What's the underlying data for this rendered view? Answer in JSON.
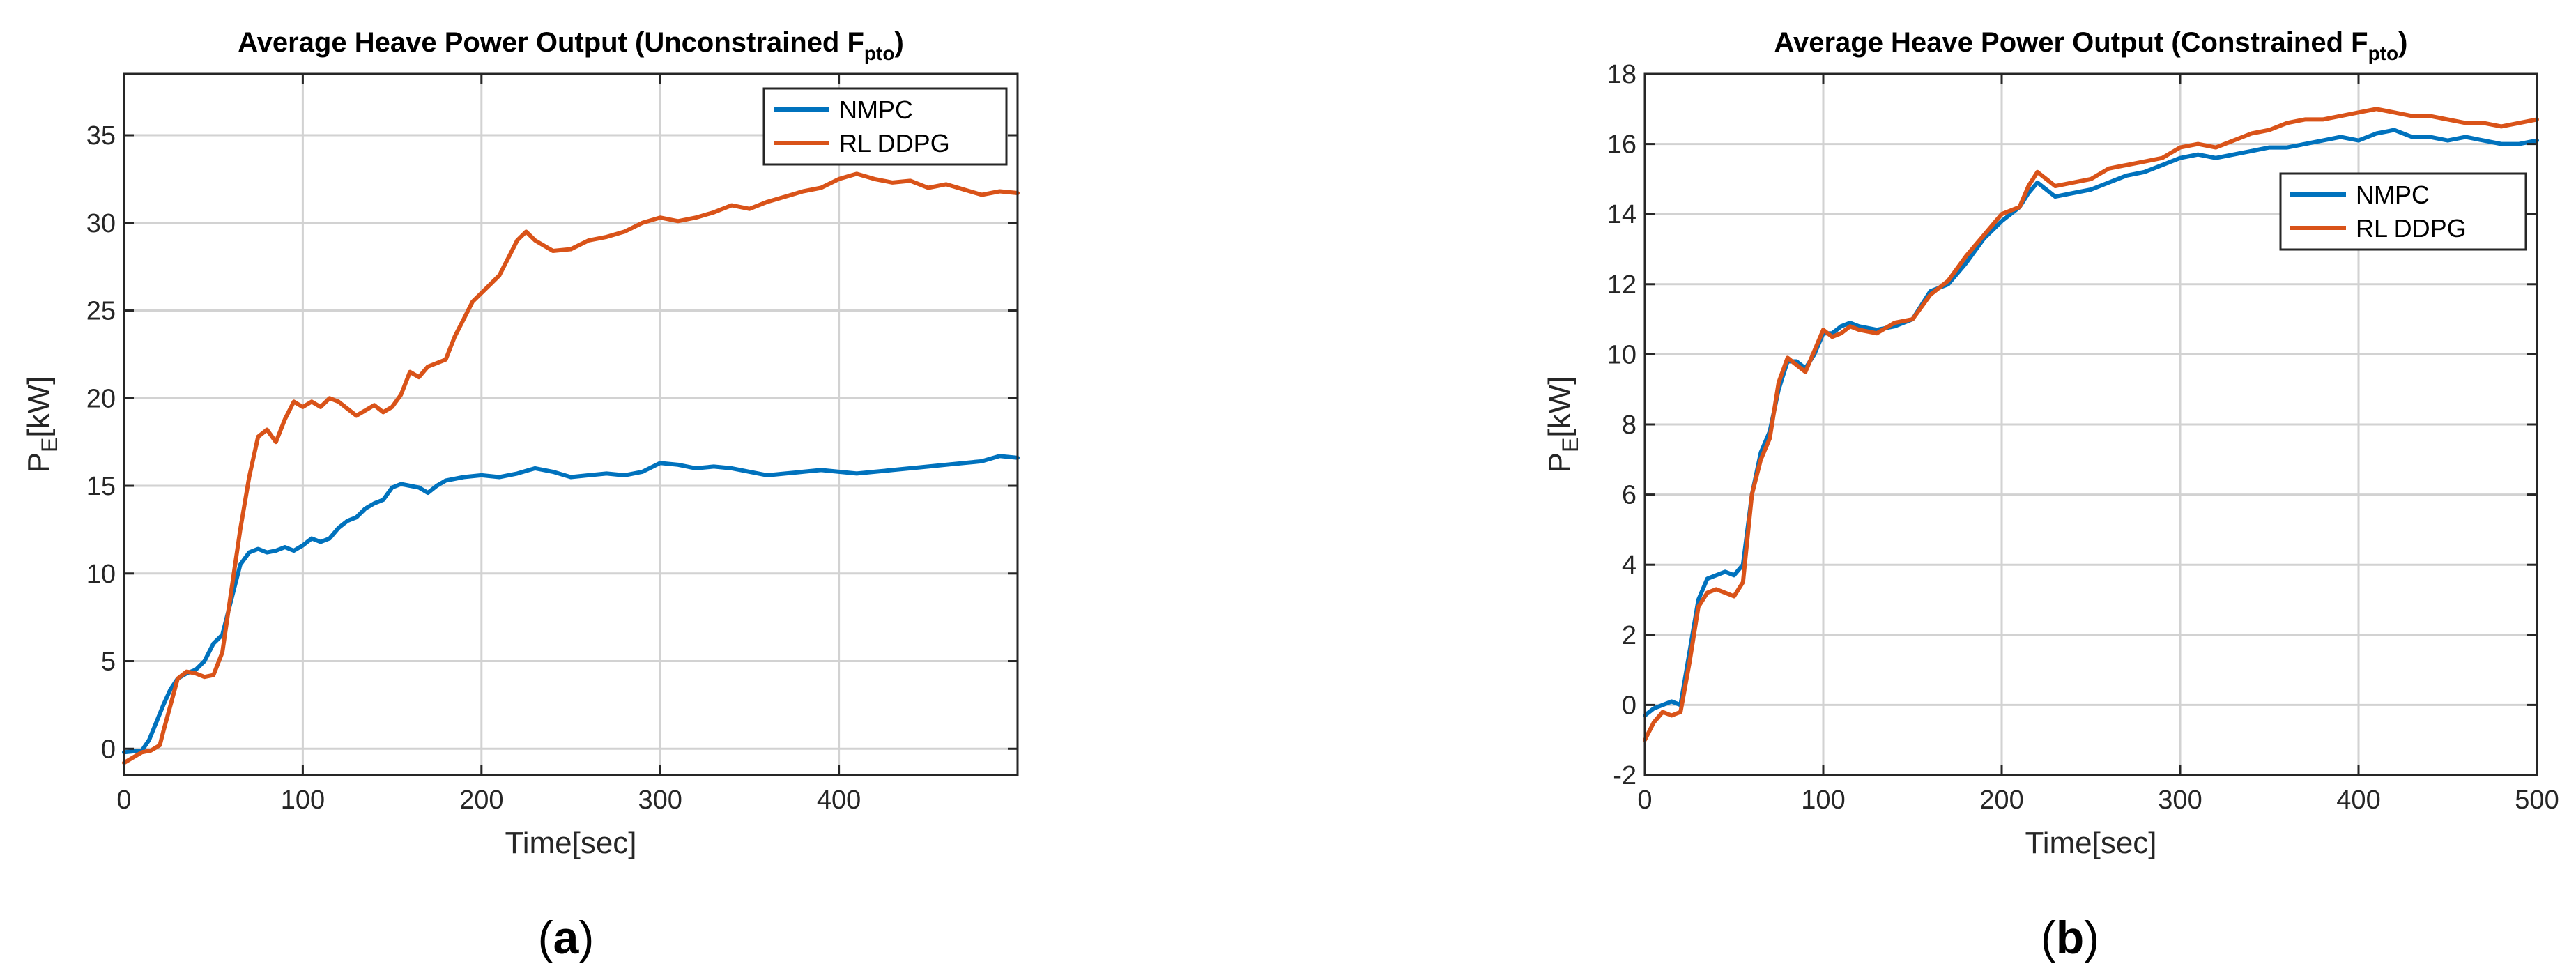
{
  "chart_data": [
    {
      "type": "line",
      "title": "Average Heave Power Output (Unconstrained F",
      "title_subscript": "pto",
      "title_suffix": ")",
      "xlabel": "Time[sec]",
      "ylabel": "P",
      "ylabel_subscript": "E",
      "ylabel_suffix": "[kW]",
      "xlim": [
        0,
        500
      ],
      "ylim": [
        -1.5,
        38.5
      ],
      "xticks": [
        0,
        100,
        200,
        300,
        400
      ],
      "xtick_labels": [
        "0",
        "100",
        "200",
        "300",
        "400"
      ],
      "yticks": [
        0,
        5,
        10,
        15,
        20,
        25,
        30,
        35
      ],
      "ytick_labels": [
        "0",
        "5",
        "10",
        "15",
        "20",
        "25",
        "30",
        "35"
      ],
      "grid": true,
      "legend_position": "top-right",
      "caption_letter": "a",
      "series": [
        {
          "name": "NMPC",
          "color": "#0072BD",
          "x": [
            0,
            10,
            14,
            18,
            22,
            26,
            30,
            35,
            40,
            45,
            50,
            55,
            60,
            65,
            70,
            75,
            80,
            85,
            90,
            95,
            100,
            105,
            110,
            115,
            120,
            125,
            130,
            135,
            140,
            145,
            150,
            155,
            160,
            165,
            170,
            175,
            180,
            190,
            200,
            210,
            220,
            230,
            240,
            250,
            260,
            270,
            280,
            290,
            300,
            310,
            320,
            330,
            340,
            350,
            360,
            370,
            380,
            390,
            400,
            410,
            420,
            430,
            440,
            450,
            460,
            470,
            480,
            490,
            500
          ],
          "y": [
            -0.2,
            -0.1,
            0.5,
            1.5,
            2.5,
            3.4,
            4.0,
            4.3,
            4.5,
            5.0,
            6.0,
            6.5,
            8.5,
            10.5,
            11.2,
            11.4,
            11.2,
            11.3,
            11.5,
            11.3,
            11.6,
            12.0,
            11.8,
            12.0,
            12.6,
            13.0,
            13.2,
            13.7,
            14.0,
            14.2,
            14.9,
            15.1,
            15.0,
            14.9,
            14.6,
            15.0,
            15.3,
            15.5,
            15.6,
            15.5,
            15.7,
            16.0,
            15.8,
            15.5,
            15.6,
            15.7,
            15.6,
            15.8,
            16.3,
            16.2,
            16.0,
            16.1,
            16.0,
            15.8,
            15.6,
            15.7,
            15.8,
            15.9,
            15.8,
            15.7,
            15.8,
            15.9,
            16.0,
            16.1,
            16.2,
            16.3,
            16.4,
            16.7,
            16.6
          ]
        },
        {
          "name": "RL DDPG",
          "color": "#D95319",
          "x": [
            0,
            5,
            10,
            15,
            20,
            22,
            26,
            30,
            35,
            40,
            45,
            50,
            55,
            60,
            65,
            70,
            75,
            80,
            85,
            90,
            95,
            100,
            105,
            110,
            115,
            120,
            125,
            130,
            135,
            140,
            145,
            150,
            155,
            160,
            165,
            170,
            175,
            180,
            185,
            190,
            195,
            200,
            205,
            210,
            215,
            220,
            225,
            230,
            240,
            250,
            260,
            270,
            280,
            290,
            300,
            310,
            320,
            330,
            340,
            350,
            360,
            370,
            380,
            390,
            400,
            410,
            420,
            430,
            440,
            450,
            460,
            470,
            480,
            490,
            500
          ],
          "y": [
            -0.8,
            -0.5,
            -0.2,
            -0.1,
            0.2,
            1.0,
            2.5,
            4.0,
            4.4,
            4.3,
            4.1,
            4.2,
            5.5,
            9.0,
            12.5,
            15.5,
            17.8,
            18.2,
            17.5,
            18.8,
            19.8,
            19.5,
            19.8,
            19.5,
            20.0,
            19.8,
            19.4,
            19.0,
            19.3,
            19.6,
            19.2,
            19.5,
            20.2,
            21.5,
            21.2,
            21.8,
            22.0,
            22.2,
            23.5,
            24.5,
            25.5,
            26.0,
            26.5,
            27.0,
            28.0,
            29.0,
            29.5,
            29.0,
            28.4,
            28.5,
            29.0,
            29.2,
            29.5,
            30.0,
            30.3,
            30.1,
            30.3,
            30.6,
            31.0,
            30.8,
            31.2,
            31.5,
            31.8,
            32.0,
            32.5,
            32.8,
            32.5,
            32.3,
            32.4,
            32.0,
            32.2,
            31.9,
            31.6,
            31.8,
            31.7
          ]
        }
      ]
    },
    {
      "type": "line",
      "title": "Average Heave Power Output (Constrained F",
      "title_subscript": "pto",
      "title_suffix": ")",
      "xlabel": "Time[sec]",
      "ylabel": "P",
      "ylabel_subscript": "E",
      "ylabel_suffix": "[kW]",
      "xlim": [
        0,
        500
      ],
      "ylim": [
        -2,
        18
      ],
      "xticks": [
        0,
        100,
        200,
        300,
        400,
        500
      ],
      "xtick_labels": [
        "0",
        "100",
        "200",
        "300",
        "400",
        "500"
      ],
      "yticks": [
        -2,
        0,
        2,
        4,
        6,
        8,
        10,
        12,
        14,
        16,
        18
      ],
      "ytick_labels": [
        "-2",
        "0",
        "2",
        "4",
        "6",
        "8",
        "10",
        "12",
        "14",
        "16",
        "18"
      ],
      "grid": true,
      "legend_position": "upper-right",
      "caption_letter": "b",
      "series": [
        {
          "name": "NMPC",
          "color": "#0072BD",
          "x": [
            0,
            5,
            10,
            15,
            20,
            25,
            30,
            35,
            40,
            45,
            50,
            55,
            60,
            65,
            70,
            75,
            80,
            85,
            90,
            95,
            100,
            105,
            110,
            115,
            120,
            130,
            140,
            150,
            160,
            170,
            180,
            190,
            200,
            210,
            215,
            220,
            225,
            230,
            240,
            250,
            260,
            270,
            280,
            290,
            300,
            310,
            320,
            330,
            340,
            350,
            360,
            370,
            380,
            390,
            400,
            410,
            420,
            430,
            440,
            450,
            460,
            470,
            480,
            490,
            500
          ],
          "y": [
            -0.3,
            -0.1,
            0.0,
            0.1,
            0.0,
            1.5,
            3.0,
            3.6,
            3.7,
            3.8,
            3.7,
            4.0,
            6.0,
            7.2,
            7.8,
            9.0,
            9.8,
            9.8,
            9.6,
            10.0,
            10.6,
            10.6,
            10.8,
            10.9,
            10.8,
            10.7,
            10.8,
            11.0,
            11.8,
            12.0,
            12.6,
            13.3,
            13.8,
            14.2,
            14.6,
            14.9,
            14.7,
            14.5,
            14.6,
            14.7,
            14.9,
            15.1,
            15.2,
            15.4,
            15.6,
            15.7,
            15.6,
            15.7,
            15.8,
            15.9,
            15.9,
            16.0,
            16.1,
            16.2,
            16.1,
            16.3,
            16.4,
            16.2,
            16.2,
            16.1,
            16.2,
            16.1,
            16.0,
            16.0,
            16.1
          ]
        },
        {
          "name": "RL DDPG",
          "color": "#D95319",
          "x": [
            0,
            5,
            10,
            15,
            20,
            25,
            30,
            35,
            40,
            45,
            50,
            55,
            60,
            65,
            70,
            75,
            80,
            85,
            90,
            95,
            100,
            105,
            110,
            115,
            120,
            130,
            140,
            150,
            160,
            170,
            180,
            190,
            200,
            210,
            215,
            220,
            225,
            230,
            240,
            250,
            260,
            270,
            280,
            290,
            300,
            310,
            320,
            330,
            340,
            350,
            360,
            370,
            380,
            390,
            400,
            410,
            420,
            430,
            440,
            450,
            460,
            470,
            480,
            490,
            500
          ],
          "y": [
            -1.0,
            -0.5,
            -0.2,
            -0.3,
            -0.2,
            1.2,
            2.8,
            3.2,
            3.3,
            3.2,
            3.1,
            3.5,
            6.0,
            7.0,
            7.6,
            9.2,
            9.9,
            9.7,
            9.5,
            10.1,
            10.7,
            10.5,
            10.6,
            10.8,
            10.7,
            10.6,
            10.9,
            11.0,
            11.7,
            12.1,
            12.8,
            13.4,
            14.0,
            14.2,
            14.8,
            15.2,
            15.0,
            14.8,
            14.9,
            15.0,
            15.3,
            15.4,
            15.5,
            15.6,
            15.9,
            16.0,
            15.9,
            16.1,
            16.3,
            16.4,
            16.6,
            16.7,
            16.7,
            16.8,
            16.9,
            17.0,
            16.9,
            16.8,
            16.8,
            16.7,
            16.6,
            16.6,
            16.5,
            16.6,
            16.7
          ]
        }
      ]
    }
  ]
}
